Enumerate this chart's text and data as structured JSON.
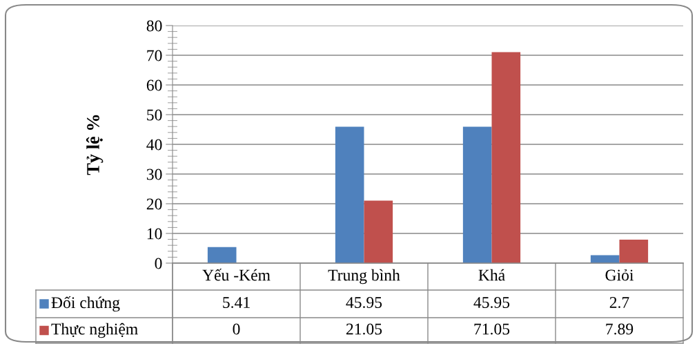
{
  "chart_data": {
    "type": "bar",
    "ylabel": "Tỷ lệ %",
    "categories": [
      "Yếu -Kém",
      "Trung bình",
      "Khá",
      "Giỏi"
    ],
    "series": [
      {
        "name": "Đối chứng",
        "color": "#4f81bd",
        "values": [
          5.41,
          45.95,
          45.95,
          2.7
        ]
      },
      {
        "name": "Thực nghiệm",
        "color": "#c0504d",
        "values": [
          0,
          21.05,
          71.05,
          7.89
        ]
      }
    ],
    "ylim": [
      0,
      80
    ],
    "yticks": [
      0,
      10,
      20,
      30,
      40,
      50,
      60,
      70,
      80
    ],
    "grid": "y",
    "legend": "bottom",
    "data_labels": true
  }
}
